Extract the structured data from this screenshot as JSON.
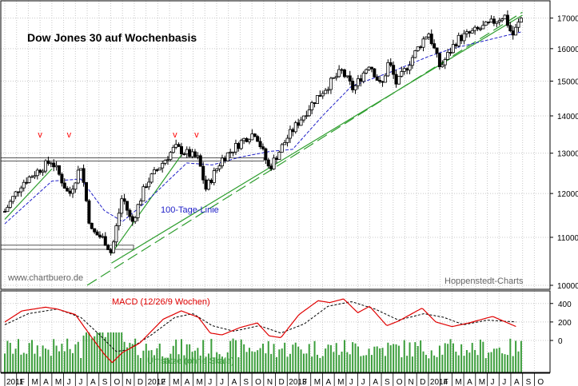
{
  "chart_data": [
    {
      "type": "candlestick",
      "title": "Dow Jones 30 auf Wochenbasis",
      "y_axis": {
        "scale": "log",
        "ylim": [
          10000,
          17400
        ],
        "tick_labels": [
          "17000",
          "16000",
          "15000",
          "14000",
          "13000",
          "12000",
          "11000",
          "10000"
        ],
        "side": "right"
      },
      "x_axis": {
        "tick_labels": [
          "2011",
          "F",
          "M",
          "A",
          "M",
          "J",
          "J",
          "A",
          "S",
          "O",
          "N",
          "D",
          "2012",
          "F",
          "M",
          "A",
          "M",
          "J",
          "J",
          "A",
          "S",
          "O",
          "N",
          "D",
          "2013",
          "F",
          "M",
          "A",
          "M",
          "J",
          "J",
          "A",
          "S",
          "O",
          "N",
          "D",
          "2014",
          "F",
          "M",
          "A",
          "M",
          "J",
          "J",
          "A",
          "S",
          "O"
        ]
      },
      "grid": true,
      "series": [
        {
          "name": "Dow Jones 30 weekly close",
          "anchors": [
            [
              "2011-01-01",
              11580
            ],
            [
              "2011-02-15",
              12250
            ],
            [
              "2011-04-30",
              12810
            ],
            [
              "2011-05-15",
              12550
            ],
            [
              "2011-06-15",
              11950
            ],
            [
              "2011-07-15",
              12700
            ],
            [
              "2011-08-10",
              11150
            ],
            [
              "2011-09-15",
              10950
            ],
            [
              "2011-10-03",
              10650
            ],
            [
              "2011-10-31",
              11950
            ],
            [
              "2011-11-25",
              11300
            ],
            [
              "2011-12-31",
              12220
            ],
            [
              "2012-03-15",
              13150
            ],
            [
              "2012-05-15",
              12850
            ],
            [
              "2012-06-03",
              12100
            ],
            [
              "2012-07-15",
              12850
            ],
            [
              "2012-09-15",
              13400
            ],
            [
              "2012-10-10",
              13550
            ],
            [
              "2012-11-15",
              12600
            ],
            [
              "2013-01-01",
              13400
            ],
            [
              "2013-03-15",
              14500
            ],
            [
              "2013-05-20",
              15300
            ],
            [
              "2013-06-20",
              14750
            ],
            [
              "2013-08-01",
              15550
            ],
            [
              "2013-09-01",
              14800
            ],
            [
              "2013-09-20",
              15600
            ],
            [
              "2013-10-10",
              14900
            ],
            [
              "2013-12-31",
              16550
            ],
            [
              "2014-02-01",
              15400
            ],
            [
              "2014-03-15",
              16300
            ],
            [
              "2014-06-01",
              16750
            ],
            [
              "2014-07-15",
              17100
            ],
            [
              "2014-08-05",
              16400
            ],
            [
              "2014-08-30",
              17050
            ]
          ]
        },
        {
          "name": "100-Tage-Linie",
          "anchors": [
            [
              "2011-01-01",
              11300
            ],
            [
              "2011-05-01",
              12300
            ],
            [
              "2011-07-15",
              12350
            ],
            [
              "2011-09-15",
              11600
            ],
            [
              "2011-11-01",
              11350
            ],
            [
              "2012-01-01",
              11800
            ],
            [
              "2012-04-15",
              12750
            ],
            [
              "2012-06-20",
              12700
            ],
            [
              "2012-09-01",
              12900
            ],
            [
              "2012-11-20",
              13050
            ],
            [
              "2013-01-15",
              13100
            ],
            [
              "2013-04-01",
              14000
            ],
            [
              "2013-06-15",
              14850
            ],
            [
              "2013-10-01",
              15300
            ],
            [
              "2013-12-31",
              15750
            ],
            [
              "2014-03-01",
              16000
            ],
            [
              "2014-08-31",
              16550
            ]
          ]
        }
      ],
      "horizontal_zones": [
        [
          12800,
          12880
        ],
        [
          10740,
          10830
        ]
      ],
      "trend_lines": [
        {
          "style": "solid",
          "from": [
            "2011-01-01",
            11400
          ],
          "to": [
            "2011-05-01",
            12600
          ]
        },
        {
          "style": "solid",
          "from": [
            "2011-10-03",
            10650
          ],
          "to": [
            "2012-04-01",
            12950
          ]
        },
        {
          "style": "solid",
          "from": [
            "2011-10-03",
            10450
          ],
          "to": [
            "2014-08-31",
            17100
          ]
        },
        {
          "style": "dashed",
          "from": [
            "2011-08-01",
            10000
          ],
          "to": [
            "2014-08-31",
            17200
          ]
        }
      ],
      "markers": [
        {
          "text": "v",
          "date": "2011-04-01"
        },
        {
          "text": "v",
          "date": "2011-06-15"
        },
        {
          "text": "v",
          "date": "2012-03-15"
        },
        {
          "text": "v",
          "date": "2012-05-10"
        }
      ],
      "annotations": [
        "100-Tage-Linie",
        "www.chartbuero.de",
        "Hoppenstedt-Charts"
      ]
    },
    {
      "type": "line",
      "title": "MACD (12/26/9 Wochen)",
      "y_axis": {
        "tick_labels": [
          "400",
          "200",
          "0"
        ],
        "side": "right"
      },
      "series": [
        {
          "name": "MACD",
          "anchors": [
            [
              "2011-01-01",
              200
            ],
            [
              "2011-02-15",
              320
            ],
            [
              "2011-04-15",
              360
            ],
            [
              "2011-05-15",
              340
            ],
            [
              "2011-07-01",
              280
            ],
            [
              "2011-08-15",
              20
            ],
            [
              "2011-09-15",
              -150
            ],
            [
              "2011-10-05",
              -240
            ],
            [
              "2011-11-01",
              -130
            ],
            [
              "2011-12-15",
              -30
            ],
            [
              "2012-02-15",
              230
            ],
            [
              "2012-04-01",
              320
            ],
            [
              "2012-05-15",
              250
            ],
            [
              "2012-06-15",
              80
            ],
            [
              "2012-07-15",
              60
            ],
            [
              "2012-09-01",
              140
            ],
            [
              "2012-10-15",
              190
            ],
            [
              "2012-11-15",
              50
            ],
            [
              "2012-12-15",
              30
            ],
            [
              "2013-02-01",
              280
            ],
            [
              "2013-03-20",
              430
            ],
            [
              "2013-04-20",
              410
            ],
            [
              "2013-05-25",
              450
            ],
            [
              "2013-07-01",
              300
            ],
            [
              "2013-08-01",
              370
            ],
            [
              "2013-09-15",
              160
            ],
            [
              "2013-10-15",
              210
            ],
            [
              "2013-12-15",
              350
            ],
            [
              "2014-01-20",
              200
            ],
            [
              "2014-03-01",
              150
            ],
            [
              "2014-04-15",
              190
            ],
            [
              "2014-06-15",
              260
            ],
            [
              "2014-08-15",
              150
            ]
          ]
        },
        {
          "name": "Signal",
          "anchors": [
            [
              "2011-01-01",
              170
            ],
            [
              "2011-03-01",
              290
            ],
            [
              "2011-05-15",
              340
            ],
            [
              "2011-07-15",
              250
            ],
            [
              "2011-08-31",
              70
            ],
            [
              "2011-10-15",
              -120
            ],
            [
              "2011-11-15",
              -100
            ],
            [
              "2012-01-15",
              60
            ],
            [
              "2012-03-15",
              250
            ],
            [
              "2012-05-01",
              290
            ],
            [
              "2012-06-20",
              160
            ],
            [
              "2012-08-15",
              100
            ],
            [
              "2012-10-20",
              160
            ],
            [
              "2012-12-15",
              80
            ],
            [
              "2013-02-15",
              180
            ],
            [
              "2013-04-15",
              370
            ],
            [
              "2013-06-15",
              420
            ],
            [
              "2013-08-15",
              340
            ],
            [
              "2013-10-15",
              220
            ],
            [
              "2013-12-20",
              290
            ],
            [
              "2014-02-10",
              250
            ],
            [
              "2014-04-01",
              170
            ],
            [
              "2014-06-01",
              220
            ],
            [
              "2014-08-15",
              200
            ]
          ]
        }
      ],
      "annotations": [
        "Umsätze (ohne Skala)"
      ]
    }
  ],
  "colors": {
    "grid": "#c8c8c8",
    "frame": "#000000",
    "candle": "#000000",
    "ma_line": "#2020c8",
    "trend_line": "#2e9e2e",
    "zone": "#555555",
    "marker": "#ff0000",
    "macd_line": "#e00000",
    "signal_line": "#000000",
    "volume_bar": "#3c9e3c",
    "title": "#000000",
    "macd_title": "#e00000",
    "volume_label": "#3c9e3c",
    "ma_label": "#2020c8",
    "watermark": "#666666",
    "month_band": "#e8e8e8"
  }
}
